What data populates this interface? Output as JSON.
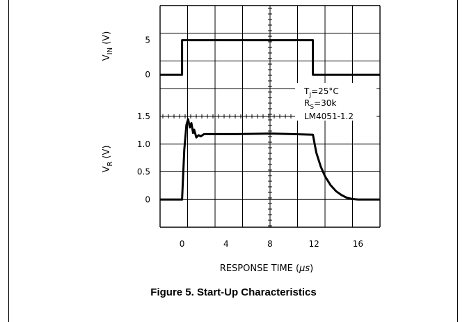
{
  "figure": {
    "caption": "Figure 5. Start-Up Characteristics"
  },
  "chart_data": {
    "type": "line",
    "xlabel_text": "RESPONSE TIME (",
    "xlabel_unit": "μs",
    "xlabel_close": ")",
    "x_ticks": [
      "0",
      "4",
      "8",
      "12",
      "16"
    ],
    "xlim": [
      -2,
      18
    ],
    "annotation": {
      "line1_main": "T",
      "line1_sub": "J",
      "line1_rest": "=25°C",
      "line2_main": "R",
      "line2_sub": "S",
      "line2_rest": "=30k",
      "line3": "LM4051-1.2"
    },
    "panels": [
      {
        "name": "vin",
        "ylabel_main": "V",
        "ylabel_sub": "IN",
        "ylabel_unit": " (V)",
        "y_ticks": [
          "5",
          "0"
        ],
        "y_tick_values": [
          5,
          0
        ],
        "ylim": [
          -2,
          10
        ],
        "x": [
          -2,
          0,
          0,
          11.9,
          11.9,
          18
        ],
        "y": [
          0,
          0,
          5,
          5,
          0,
          0
        ]
      },
      {
        "name": "vr",
        "ylabel_main": "V",
        "ylabel_sub": "R",
        "ylabel_unit": " (V)",
        "y_ticks": [
          "1.5",
          "1.0",
          "0.5",
          "0"
        ],
        "y_tick_values": [
          1.5,
          1.0,
          0.5,
          0
        ],
        "ylim": [
          -0.5,
          1.5
        ],
        "x": [
          -2,
          0,
          0.2,
          0.4,
          0.55,
          0.7,
          0.85,
          1.0,
          1.1,
          1.3,
          1.5,
          1.7,
          2.0,
          3,
          5,
          8,
          10,
          11.9,
          12.2,
          12.6,
          13.0,
          13.5,
          14.0,
          14.5,
          15.0,
          15.5,
          16.0,
          18
        ],
        "y": [
          0,
          0,
          0.9,
          1.35,
          1.45,
          1.3,
          1.38,
          1.2,
          1.26,
          1.12,
          1.16,
          1.14,
          1.18,
          1.18,
          1.18,
          1.19,
          1.18,
          1.17,
          0.85,
          0.6,
          0.42,
          0.26,
          0.15,
          0.08,
          0.03,
          0.01,
          0.0,
          0.0
        ]
      }
    ]
  }
}
